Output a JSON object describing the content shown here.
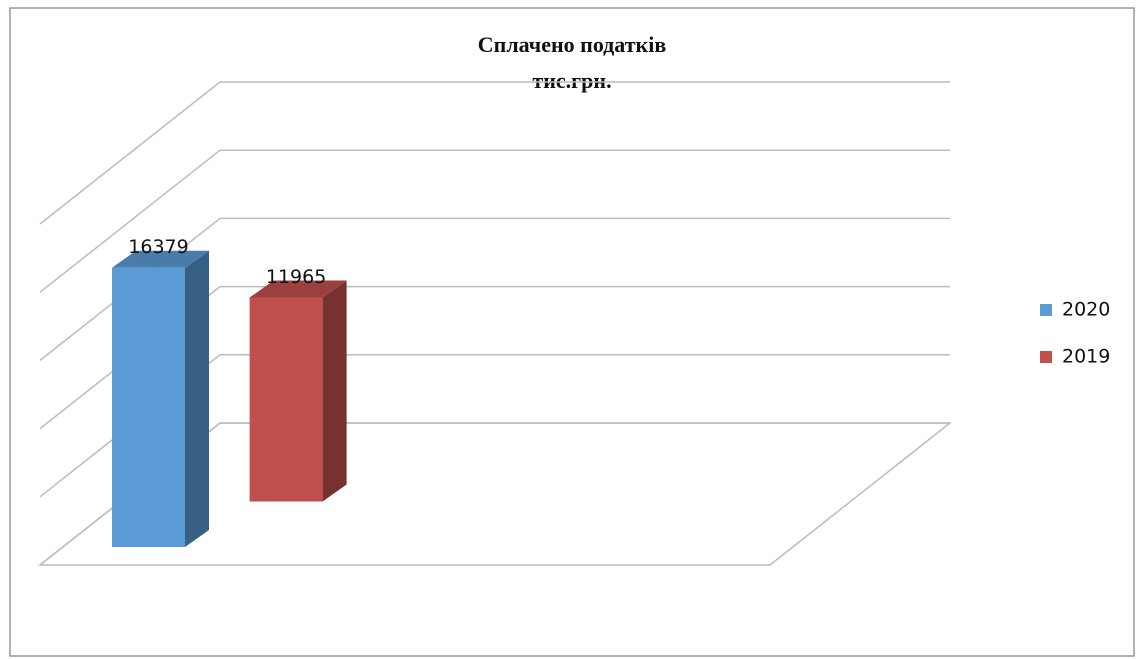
{
  "chart_data": {
    "type": "bar3d",
    "title": "Сплачено податків",
    "subtitle": "тис.грн.",
    "categories": [
      null
    ],
    "series": [
      {
        "name": "2020",
        "color": "#5b9bd5",
        "values": [
          16379
        ]
      },
      {
        "name": "2019",
        "color": "#c0504d",
        "values": [
          11965
        ]
      }
    ],
    "ylim": [
      0,
      20000
    ],
    "yticks": [
      0,
      4000,
      8000,
      12000,
      16000,
      20000
    ],
    "grid": true,
    "legend": "right"
  }
}
